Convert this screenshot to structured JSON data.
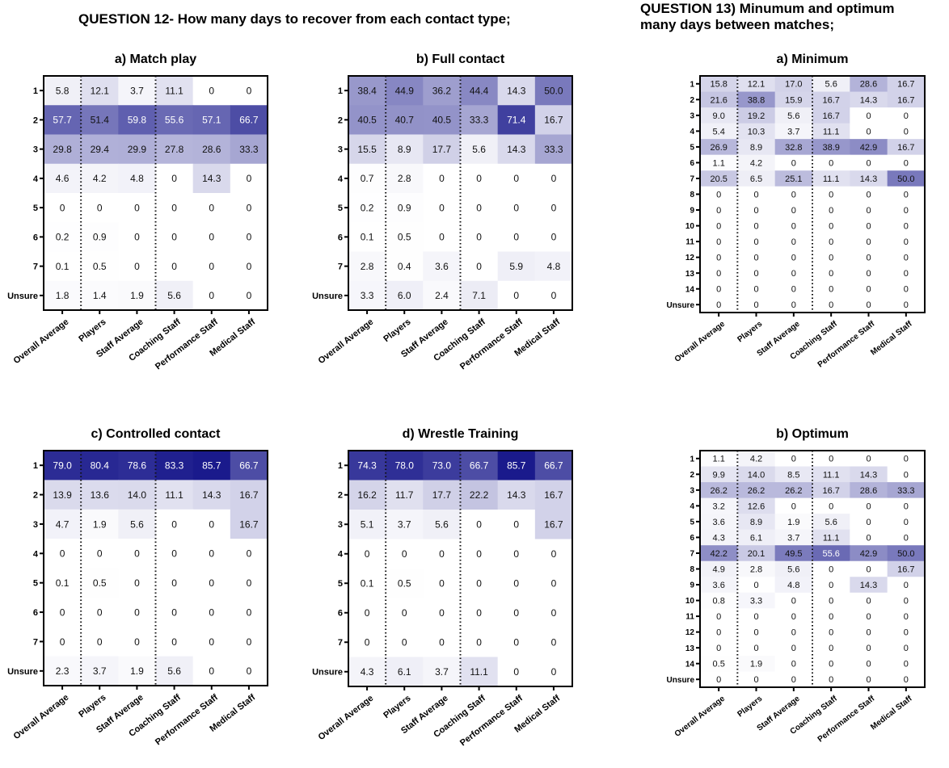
{
  "titles": {
    "q12": "QUESTION 12- How many days to recover from each contact type;",
    "q13_line1": "QUESTION 13) Minumum and optimum",
    "q13_line2": "many days between matches;"
  },
  "chart_data": [
    {
      "type": "heatmap",
      "title": "a) Match play",
      "categories": [
        "Overall Average",
        "Players",
        "Staff Average",
        "Coaching Staff",
        "Performance Staff",
        "Medical Staff"
      ],
      "rows": [
        "1",
        "2",
        "3",
        "4",
        "5",
        "6",
        "7",
        "Unsure"
      ],
      "values": [
        [
          "5.8",
          "12.1",
          "3.7",
          "11.1",
          "0",
          "0"
        ],
        [
          "57.7",
          "51.4",
          "59.8",
          "55.6",
          "57.1",
          "66.7"
        ],
        [
          "29.8",
          "29.4",
          "29.9",
          "27.8",
          "28.6",
          "33.3"
        ],
        [
          "4.6",
          "4.2",
          "4.8",
          "0",
          "14.3",
          "0"
        ],
        [
          "0",
          "0",
          "0",
          "0",
          "0",
          "0"
        ],
        [
          "0.2",
          "0.9",
          "0",
          "0",
          "0",
          "0"
        ],
        [
          "0.1",
          "0.5",
          "0",
          "0",
          "0",
          "0"
        ],
        [
          "1.8",
          "1.4",
          "1.9",
          "5.6",
          "0",
          "0"
        ]
      ]
    },
    {
      "type": "heatmap",
      "title": "b) Full contact",
      "categories": [
        "Overall Average",
        "Players",
        "Staff Average",
        "Coaching Staff",
        "Performance Staff",
        "Medical Staff"
      ],
      "rows": [
        "1",
        "2",
        "3",
        "4",
        "5",
        "6",
        "7",
        "Unsure"
      ],
      "values": [
        [
          "38.4",
          "44.9",
          "36.2",
          "44.4",
          "14.3",
          "50.0"
        ],
        [
          "40.5",
          "40.7",
          "40.5",
          "33.3",
          "71.4",
          "16.7"
        ],
        [
          "15.5",
          "8.9",
          "17.7",
          "5.6",
          "14.3",
          "33.3"
        ],
        [
          "0.7",
          "2.8",
          "0",
          "0",
          "0",
          "0"
        ],
        [
          "0.2",
          "0.9",
          "0",
          "0",
          "0",
          "0"
        ],
        [
          "0.1",
          "0.5",
          "0",
          "0",
          "0",
          "0"
        ],
        [
          "2.8",
          "0.4",
          "3.6",
          "0",
          "5.9",
          "4.8"
        ],
        [
          "3.3",
          "6.0",
          "2.4",
          "7.1",
          "0",
          "0"
        ]
      ]
    },
    {
      "type": "heatmap",
      "title": "a) Minimum",
      "categories": [
        "Overall Average",
        "Players",
        "Staff Average",
        "Coaching Staff",
        "Performance Staff",
        "Medical Staff"
      ],
      "rows": [
        "1",
        "2",
        "3",
        "4",
        "5",
        "6",
        "7",
        "8",
        "9",
        "10",
        "11",
        "12",
        "13",
        "14",
        "Unsure"
      ],
      "values": [
        [
          "15.8",
          "12.1",
          "17.0",
          "5.6",
          "28.6",
          "16.7"
        ],
        [
          "21.6",
          "38.8",
          "15.9",
          "16.7",
          "14.3",
          "16.7"
        ],
        [
          "9.0",
          "19.2",
          "5.6",
          "16.7",
          "0",
          "0"
        ],
        [
          "5.4",
          "10.3",
          "3.7",
          "11.1",
          "0",
          "0"
        ],
        [
          "26.9",
          "8.9",
          "32.8",
          "38.9",
          "42.9",
          "16.7"
        ],
        [
          "1.1",
          "4.2",
          "0",
          "0",
          "0",
          "0"
        ],
        [
          "20.5",
          "6.5",
          "25.1",
          "11.1",
          "14.3",
          "50.0"
        ],
        [
          "0",
          "0",
          "0",
          "0",
          "0",
          "0"
        ],
        [
          "0",
          "0",
          "0",
          "0",
          "0",
          "0"
        ],
        [
          "0",
          "0",
          "0",
          "0",
          "0",
          "0"
        ],
        [
          "0",
          "0",
          "0",
          "0",
          "0",
          "0"
        ],
        [
          "0",
          "0",
          "0",
          "0",
          "0",
          "0"
        ],
        [
          "0",
          "0",
          "0",
          "0",
          "0",
          "0"
        ],
        [
          "0",
          "0",
          "0",
          "0",
          "0",
          "0"
        ],
        [
          "0",
          "0",
          "0",
          "0",
          "0",
          "0"
        ]
      ]
    },
    {
      "type": "heatmap",
      "title": "c) Controlled contact",
      "categories": [
        "Overall Average",
        "Players",
        "Staff Average",
        "Coaching Staff",
        "Performance Staff",
        "Medical Staff"
      ],
      "rows": [
        "1",
        "2",
        "3",
        "4",
        "5",
        "6",
        "7",
        "Unsure"
      ],
      "values": [
        [
          "79.0",
          "80.4",
          "78.6",
          "83.3",
          "85.7",
          "66.7"
        ],
        [
          "13.9",
          "13.6",
          "14.0",
          "11.1",
          "14.3",
          "16.7"
        ],
        [
          "4.7",
          "1.9",
          "5.6",
          "0",
          "0",
          "16.7"
        ],
        [
          "0",
          "0",
          "0",
          "0",
          "0",
          "0"
        ],
        [
          "0.1",
          "0.5",
          "0",
          "0",
          "0",
          "0"
        ],
        [
          "0",
          "0",
          "0",
          "0",
          "0",
          "0"
        ],
        [
          "0",
          "0",
          "0",
          "0",
          "0",
          "0"
        ],
        [
          "2.3",
          "3.7",
          "1.9",
          "5.6",
          "0",
          "0"
        ]
      ]
    },
    {
      "type": "heatmap",
      "title": "d) Wrestle Training",
      "categories": [
        "Overall Average",
        "Players",
        "Staff Average",
        "Coaching Staff",
        "Performance Staff",
        "Medical Staff"
      ],
      "rows": [
        "1",
        "2",
        "3",
        "4",
        "5",
        "6",
        "7",
        "Unsure"
      ],
      "values": [
        [
          "74.3",
          "78.0",
          "73.0",
          "66.7",
          "85.7",
          "66.7"
        ],
        [
          "16.2",
          "11.7",
          "17.7",
          "22.2",
          "14.3",
          "16.7"
        ],
        [
          "5.1",
          "3.7",
          "5.6",
          "0",
          "0",
          "16.7"
        ],
        [
          "0",
          "0",
          "0",
          "0",
          "0",
          "0"
        ],
        [
          "0.1",
          "0.5",
          "0",
          "0",
          "0",
          "0"
        ],
        [
          "0",
          "0",
          "0",
          "0",
          "0",
          "0"
        ],
        [
          "0",
          "0",
          "0",
          "0",
          "0",
          "0"
        ],
        [
          "4.3",
          "6.1",
          "3.7",
          "11.1",
          "0",
          "0"
        ]
      ]
    },
    {
      "type": "heatmap",
      "title": "b) Optimum",
      "categories": [
        "Overall Average",
        "Players",
        "Staff Average",
        "Coaching Staff",
        "Performance Staff",
        "Medical Staff"
      ],
      "rows": [
        "1",
        "2",
        "3",
        "4",
        "5",
        "6",
        "7",
        "8",
        "9",
        "10",
        "11",
        "12",
        "13",
        "14",
        "Unsure"
      ],
      "values": [
        [
          "1.1",
          "4.2",
          "0",
          "0",
          "0",
          "0"
        ],
        [
          "9.9",
          "14.0",
          "8.5",
          "11.1",
          "14.3",
          "0"
        ],
        [
          "26.2",
          "26.2",
          "26.2",
          "16.7",
          "28.6",
          "33.3"
        ],
        [
          "3.2",
          "12.6",
          "0",
          "0",
          "0",
          "0"
        ],
        [
          "3.6",
          "8.9",
          "1.9",
          "5.6",
          "0",
          "0"
        ],
        [
          "4.3",
          "6.1",
          "3.7",
          "11.1",
          "0",
          "0"
        ],
        [
          "42.2",
          "20.1",
          "49.5",
          "55.6",
          "42.9",
          "50.0"
        ],
        [
          "4.9",
          "2.8",
          "5.6",
          "0",
          "0",
          "16.7"
        ],
        [
          "3.6",
          "0",
          "4.8",
          "0",
          "14.3",
          "0"
        ],
        [
          "0.8",
          "3.3",
          "0",
          "0",
          "0",
          "0"
        ],
        [
          "0",
          "0",
          "0",
          "0",
          "0",
          "0"
        ],
        [
          "0",
          "0",
          "0",
          "0",
          "0",
          "0"
        ],
        [
          "0",
          "0",
          "0",
          "0",
          "0",
          "0"
        ],
        [
          "0.5",
          "1.9",
          "0",
          "0",
          "0",
          "0"
        ],
        [
          "0",
          "0",
          "0",
          "0",
          "0",
          "0"
        ]
      ]
    }
  ]
}
